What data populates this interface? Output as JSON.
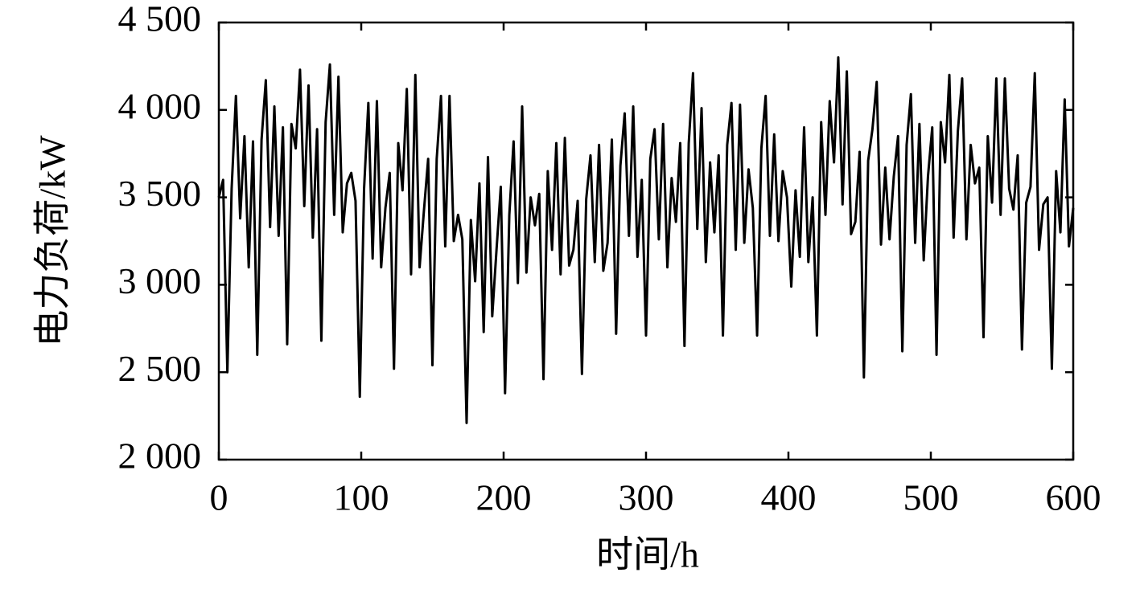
{
  "chart_data": {
    "type": "line",
    "xlabel": "时间/h",
    "ylabel": "电力负荷/kW",
    "xlim": [
      0,
      600
    ],
    "xticks": [
      0,
      100,
      200,
      300,
      400,
      500,
      600
    ],
    "ylim": [
      2000,
      4500
    ],
    "yticks": [
      {
        "value": 2000,
        "label": "2 000"
      },
      {
        "value": 2500,
        "label": "2 500"
      },
      {
        "value": 3000,
        "label": "3 000"
      },
      {
        "value": 3500,
        "label": "3 500"
      },
      {
        "value": 4000,
        "label": "4 000"
      },
      {
        "value": 4500,
        "label": "4 500"
      }
    ],
    "grid": false,
    "series": [
      {
        "name": "电力负荷",
        "color": "#000000",
        "x": [
          0,
          3,
          6,
          9,
          12,
          15,
          18,
          21,
          24,
          27,
          30,
          33,
          36,
          39,
          42,
          45,
          48,
          51,
          54,
          57,
          60,
          63,
          66,
          69,
          72,
          75,
          78,
          81,
          84,
          87,
          90,
          93,
          96,
          99,
          102,
          105,
          108,
          111,
          114,
          117,
          120,
          123,
          126,
          129,
          132,
          135,
          138,
          141,
          144,
          147,
          150,
          153,
          156,
          159,
          162,
          165,
          168,
          171,
          174,
          177,
          180,
          183,
          186,
          189,
          192,
          195,
          198,
          201,
          204,
          207,
          210,
          213,
          216,
          219,
          222,
          225,
          228,
          231,
          234,
          237,
          240,
          243,
          246,
          249,
          252,
          255,
          258,
          261,
          264,
          267,
          270,
          273,
          276,
          279,
          282,
          285,
          288,
          291,
          294,
          297,
          300,
          303,
          306,
          309,
          312,
          315,
          318,
          321,
          324,
          327,
          330,
          333,
          336,
          339,
          342,
          345,
          348,
          351,
          354,
          357,
          360,
          363,
          366,
          369,
          372,
          375,
          378,
          381,
          384,
          387,
          390,
          393,
          396,
          399,
          402,
          405,
          408,
          411,
          414,
          417,
          420,
          423,
          426,
          429,
          432,
          435,
          438,
          441,
          444,
          447,
          450,
          453,
          456,
          459,
          462,
          465,
          468,
          471,
          474,
          477,
          480,
          483,
          486,
          489,
          492,
          495,
          498,
          501,
          504,
          507,
          510,
          513,
          516,
          519,
          522,
          525,
          528,
          531,
          534,
          537,
          540,
          543,
          546,
          549,
          552,
          555,
          558,
          561,
          564,
          567,
          570,
          573,
          576,
          579,
          582,
          585,
          588,
          591,
          594,
          597,
          600
        ],
        "values": [
          3500,
          3600,
          2500,
          3550,
          4080,
          3380,
          3850,
          3100,
          3820,
          2600,
          3830,
          4170,
          3330,
          4020,
          3280,
          3900,
          2660,
          3920,
          3780,
          4230,
          3450,
          4140,
          3270,
          3890,
          2680,
          3930,
          4260,
          3400,
          4190,
          3300,
          3580,
          3640,
          3480,
          2360,
          3550,
          4040,
          3150,
          4050,
          3100,
          3440,
          3640,
          2520,
          3810,
          3540,
          4120,
          3060,
          4200,
          3100,
          3420,
          3720,
          2540,
          3720,
          4080,
          3220,
          4080,
          3250,
          3400,
          3260,
          2210,
          3370,
          3020,
          3580,
          2730,
          3730,
          2820,
          3200,
          3560,
          2380,
          3400,
          3820,
          3010,
          4020,
          3070,
          3500,
          3340,
          3520,
          2460,
          3650,
          3200,
          3810,
          3060,
          3840,
          3110,
          3200,
          3480,
          2490,
          3490,
          3740,
          3130,
          3800,
          3080,
          3240,
          3830,
          2720,
          3680,
          3980,
          3280,
          4020,
          3160,
          3600,
          2710,
          3720,
          3890,
          3260,
          3920,
          3100,
          3610,
          3360,
          3810,
          2650,
          3810,
          4210,
          3320,
          4010,
          3130,
          3700,
          3300,
          3740,
          2710,
          3800,
          4040,
          3200,
          4030,
          3240,
          3660,
          3440,
          2710,
          3780,
          4080,
          3280,
          3860,
          3250,
          3650,
          3500,
          2990,
          3540,
          3160,
          3900,
          3130,
          3500,
          2710,
          3930,
          3400,
          4050,
          3700,
          4300,
          3460,
          4220,
          3290,
          3360,
          3760,
          2470,
          3710,
          3890,
          4160,
          3230,
          3670,
          3260,
          3620,
          3850,
          2620,
          3800,
          4090,
          3240,
          3920,
          3140,
          3620,
          3900,
          2600,
          3930,
          3700,
          4200,
          3270,
          3880,
          4180,
          3260,
          3800,
          3580,
          3670,
          2700,
          3850,
          3470,
          4180,
          3400,
          4180,
          3550,
          3430,
          3740,
          2630,
          3470,
          3560,
          4210,
          3200,
          3460,
          3500,
          2520,
          3650,
          3300,
          4060,
          3220,
          3440
        ]
      }
    ]
  }
}
